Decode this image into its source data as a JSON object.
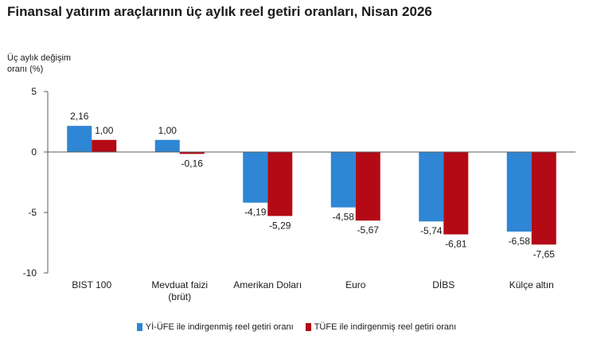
{
  "chart_data": {
    "type": "bar",
    "title": "Finansal yatırım araçlarının üç aylık reel getiri oranları, Nisan 2026",
    "ylabel": [
      "Üç aylık değişim",
      "oranı (%)"
    ],
    "xlabel": "",
    "ylim": [
      -10,
      5
    ],
    "yticks": [
      5,
      0,
      -5,
      -10
    ],
    "categories": [
      [
        "BIST 100"
      ],
      [
        "Mevduat faizi",
        "(brüt)"
      ],
      [
        "Amerikan Doları"
      ],
      [
        "Euro"
      ],
      [
        "DİBS"
      ],
      [
        "Külçe altın"
      ]
    ],
    "series": [
      {
        "name": "Yİ-ÜFE ile indirgenmiş reel getiri oranı",
        "color": "#2e86d4",
        "values": [
          2.16,
          1.0,
          -4.19,
          -4.58,
          -5.74,
          -6.58
        ],
        "labels": [
          "2,16",
          "1,00",
          "-4,19",
          "-4,58",
          "-5,74",
          "-6,58"
        ]
      },
      {
        "name": "TÜFE ile indirgenmiş reel getiri oranı",
        "color": "#b40a16",
        "values": [
          1.0,
          -0.16,
          -5.29,
          -5.67,
          -6.81,
          -7.65
        ],
        "labels": [
          "1,00",
          "-0,16",
          "-5,29",
          "-5,67",
          "-6,81",
          "-7,65"
        ]
      }
    ],
    "grid": false,
    "legend": "bottom"
  }
}
